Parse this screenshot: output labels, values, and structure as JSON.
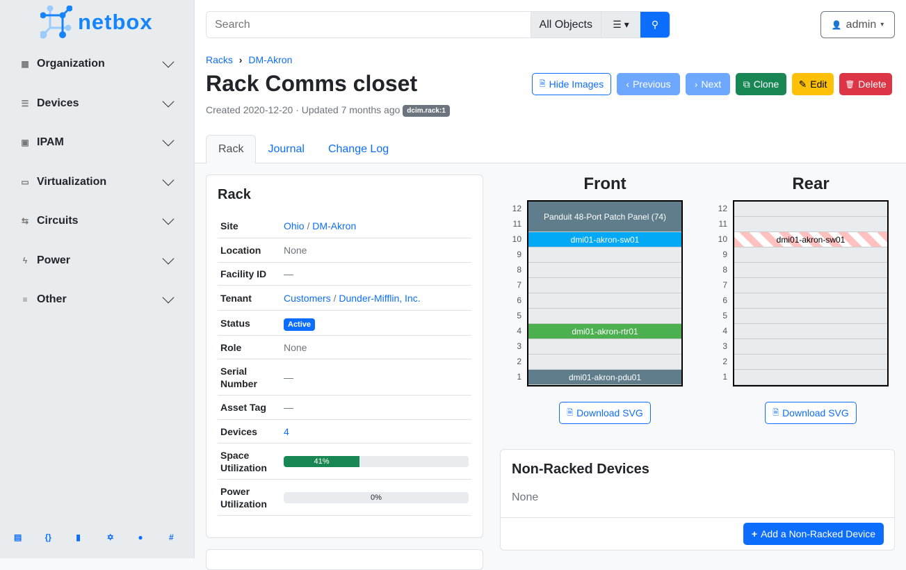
{
  "brand": "netbox",
  "sidebar": {
    "items": [
      {
        "label": "Organization",
        "icon": "building-icon"
      },
      {
        "label": "Devices",
        "icon": "server-icon"
      },
      {
        "label": "IPAM",
        "icon": "counter-icon"
      },
      {
        "label": "Virtualization",
        "icon": "monitor-icon"
      },
      {
        "label": "Circuits",
        "icon": "transit-icon"
      },
      {
        "label": "Power",
        "icon": "flash-icon"
      },
      {
        "label": "Other",
        "icon": "notes-icon"
      }
    ],
    "footer": [
      "book-icon",
      "api-icon",
      "docs-icon",
      "graphql-icon",
      "github-icon",
      "slack-icon"
    ]
  },
  "search": {
    "placeholder": "Search",
    "scope": "All Objects"
  },
  "user": "admin",
  "breadcrumb": [
    "Racks",
    "DM-Akron"
  ],
  "title": "Rack Comms closet",
  "meta": "Created 2020-12-20 · Updated 7 months ago",
  "badge": "dcim.rack:1",
  "buttons": {
    "hide_images": "Hide Images",
    "previous": "Previous",
    "next": "Next",
    "clone": "Clone",
    "edit": "Edit",
    "delete": "Delete"
  },
  "tabs": [
    "Rack",
    "Journal",
    "Change Log"
  ],
  "rack_card": {
    "title": "Rack",
    "rows": [
      {
        "k": "Site",
        "v1": "Ohio",
        "sep": " / ",
        "v2": "DM-Akron"
      },
      {
        "k": "Location",
        "v": "None"
      },
      {
        "k": "Facility ID",
        "v": "—"
      },
      {
        "k": "Tenant",
        "v1": "Customers",
        "sep": " / ",
        "v2": "Dunder-Mifflin, Inc."
      },
      {
        "k": "Status",
        "badge": "Active"
      },
      {
        "k": "Role",
        "v": "None"
      },
      {
        "k": "Serial Number",
        "v": "—"
      },
      {
        "k": "Asset Tag",
        "v": "—"
      },
      {
        "k": "Devices",
        "link": "4"
      },
      {
        "k": "Space Utilization",
        "progress": 41,
        "label": "41%"
      },
      {
        "k": "Power Utilization",
        "progress": 0,
        "label": "0%"
      }
    ]
  },
  "front": {
    "title": "Front",
    "devices": [
      {
        "name": "Panduit 48-Port Patch Panel (74)",
        "top": 12,
        "height": 2,
        "color": "#607d8b"
      },
      {
        "name": "dmi01-akron-sw01",
        "top": 10,
        "height": 1,
        "color": "#03a9f4"
      },
      {
        "name": "dmi01-akron-rtr01",
        "top": 4,
        "height": 1,
        "color": "#4caf50"
      },
      {
        "name": "dmi01-akron-pdu01",
        "top": 1,
        "height": 1,
        "color": "#607d8b"
      }
    ]
  },
  "rear": {
    "title": "Rear",
    "devices": [
      {
        "name": "dmi01-akron-sw01",
        "top": 10,
        "height": 1,
        "color": "#ffc0c0",
        "striped": true
      }
    ]
  },
  "units": 12,
  "download_svg": "Download SVG",
  "nonracked": {
    "title": "Non-Racked Devices",
    "value": "None",
    "add": "Add a Non-Racked Device"
  }
}
